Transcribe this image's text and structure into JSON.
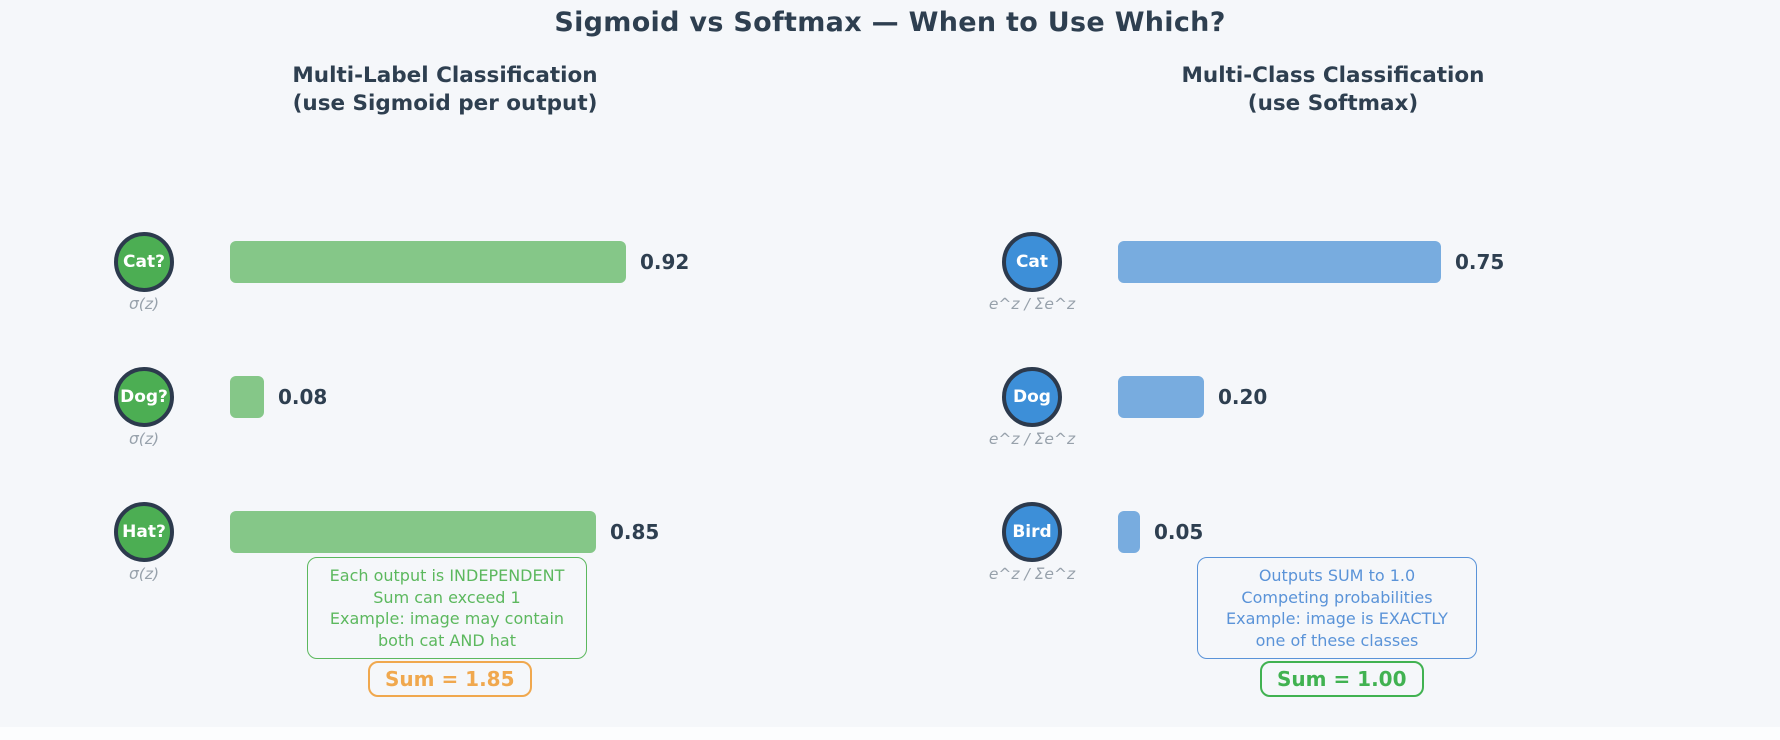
{
  "title": "Sigmoid vs Softmax — When to Use Which?",
  "colors": {
    "background": "#f5f7fa",
    "ink": "#2e3f50",
    "node-border": "#2c3a4d",
    "sigmoid-node": "#4cae53",
    "sigmoid-bar": "#85c788",
    "softmax-node": "#3d8fd8",
    "softmax-bar": "#78acdf",
    "sigmoid-note": "#5cb85e",
    "softmax-note": "#5a93d8",
    "sum-left": "#f0a84e",
    "sum-right": "#41b251",
    "formula": "#97a1ab"
  },
  "left": {
    "header_line1": "Multi-Label Classification",
    "header_line2": "(use Sigmoid per output)",
    "rows": [
      {
        "label": "Cat?",
        "formula": "σ(z)",
        "value": 0.92,
        "value_label": "0.92"
      },
      {
        "label": "Dog?",
        "formula": "σ(z)",
        "value": 0.08,
        "value_label": "0.08"
      },
      {
        "label": "Hat?",
        "formula": "σ(z)",
        "value": 0.85,
        "value_label": "0.85"
      }
    ],
    "note_lines": [
      "Each output is INDEPENDENT",
      "Sum can exceed 1",
      "Example: image may contain",
      "both cat AND hat"
    ],
    "sum_label": "Sum = 1.85"
  },
  "right": {
    "header_line1": "Multi-Class Classification",
    "header_line2": "(use Softmax)",
    "rows": [
      {
        "label": "Cat",
        "formula": "e^z / Σe^z",
        "value": 0.75,
        "value_label": "0.75"
      },
      {
        "label": "Dog",
        "formula": "e^z / Σe^z",
        "value": 0.2,
        "value_label": "0.20"
      },
      {
        "label": "Bird",
        "formula": "e^z / Σe^z",
        "value": 0.05,
        "value_label": "0.05"
      }
    ],
    "note_lines": [
      "Outputs SUM to 1.0",
      "Competing probabilities",
      "Example: image is EXACTLY",
      "one of these classes"
    ],
    "sum_label": "Sum = 1.00"
  },
  "chart_data": [
    {
      "type": "bar",
      "orientation": "horizontal",
      "title": "Multi-Label Classification (use Sigmoid per output)",
      "categories": [
        "Cat?",
        "Dog?",
        "Hat?"
      ],
      "values": [
        0.92,
        0.08,
        0.85
      ],
      "value_labels": [
        "0.92",
        "0.08",
        "0.85"
      ],
      "annotation": "Each output is INDEPENDENT / Sum can exceed 1 / Example: image may contain both cat AND hat",
      "sum": 1.85,
      "xlim": [
        0,
        1
      ],
      "grid": false,
      "legend": false
    },
    {
      "type": "bar",
      "orientation": "horizontal",
      "title": "Multi-Class Classification (use Softmax)",
      "categories": [
        "Cat",
        "Dog",
        "Bird"
      ],
      "values": [
        0.75,
        0.2,
        0.05
      ],
      "value_labels": [
        "0.75",
        "0.20",
        "0.05"
      ],
      "annotation": "Outputs SUM to 1.0 / Competing probabilities / Example: image is EXACTLY one of these classes",
      "sum": 1.0,
      "xlim": [
        0,
        1
      ],
      "grid": false,
      "legend": false
    }
  ]
}
